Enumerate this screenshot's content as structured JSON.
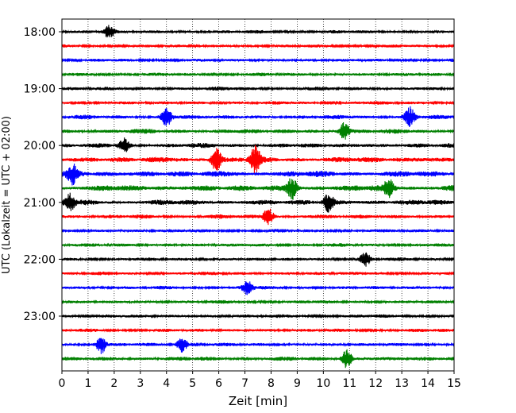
{
  "chart_data": {
    "type": "line",
    "chart_style": "helicorder",
    "xlabel": "Zeit  [min]",
    "ylabel": "UTC (Lokalzeit = UTC + 02:00)",
    "xlim": [
      0,
      15
    ],
    "x_ticks": [
      0,
      1,
      2,
      3,
      4,
      5,
      6,
      7,
      8,
      9,
      10,
      11,
      12,
      13,
      14,
      15
    ],
    "x_grid": "dotted vertical lines at each minute",
    "y_tick_labels": [
      "18:00",
      "19:00",
      "20:00",
      "21:00",
      "22:00",
      "23:00"
    ],
    "trace_colors": [
      "#000000",
      "#ff0000",
      "#0000ff",
      "#008000"
    ],
    "trace_interval_minutes": 15,
    "trace_starts": [
      "18:00",
      "18:15",
      "18:30",
      "18:45",
      "19:00",
      "19:15",
      "19:30",
      "19:45",
      "20:00",
      "20:15",
      "20:30",
      "20:45",
      "21:00",
      "21:15",
      "21:30",
      "21:45",
      "22:00",
      "22:15",
      "22:30",
      "22:45",
      "23:00",
      "23:15",
      "23:30",
      "23:45"
    ],
    "trace_noise_level": [
      0.45,
      0.4,
      0.4,
      0.45,
      0.5,
      0.45,
      0.55,
      0.6,
      0.6,
      0.75,
      0.8,
      0.8,
      0.7,
      0.55,
      0.45,
      0.45,
      0.45,
      0.45,
      0.45,
      0.45,
      0.45,
      0.45,
      0.45,
      0.55
    ],
    "bursts": [
      {
        "trace": 0,
        "minute": 1.8,
        "amp": 1.1
      },
      {
        "trace": 6,
        "minute": 4.0,
        "amp": 1.6
      },
      {
        "trace": 6,
        "minute": 13.3,
        "amp": 1.8
      },
      {
        "trace": 7,
        "minute": 10.8,
        "amp": 1.6
      },
      {
        "trace": 8,
        "minute": 2.4,
        "amp": 1.3
      },
      {
        "trace": 9,
        "minute": 5.9,
        "amp": 2.0
      },
      {
        "trace": 9,
        "minute": 7.4,
        "amp": 2.2
      },
      {
        "trace": 10,
        "minute": 0.4,
        "amp": 1.7
      },
      {
        "trace": 11,
        "minute": 8.8,
        "amp": 1.9
      },
      {
        "trace": 11,
        "minute": 12.5,
        "amp": 1.6
      },
      {
        "trace": 12,
        "minute": 0.3,
        "amp": 1.5
      },
      {
        "trace": 12,
        "minute": 10.2,
        "amp": 1.5
      },
      {
        "trace": 13,
        "minute": 7.9,
        "amp": 1.6
      },
      {
        "trace": 16,
        "minute": 11.6,
        "amp": 1.3
      },
      {
        "trace": 18,
        "minute": 7.1,
        "amp": 1.2
      },
      {
        "trace": 22,
        "minute": 1.5,
        "amp": 1.6
      },
      {
        "trace": 22,
        "minute": 4.6,
        "amp": 1.4
      },
      {
        "trace": 23,
        "minute": 10.9,
        "amp": 1.6
      }
    ]
  }
}
